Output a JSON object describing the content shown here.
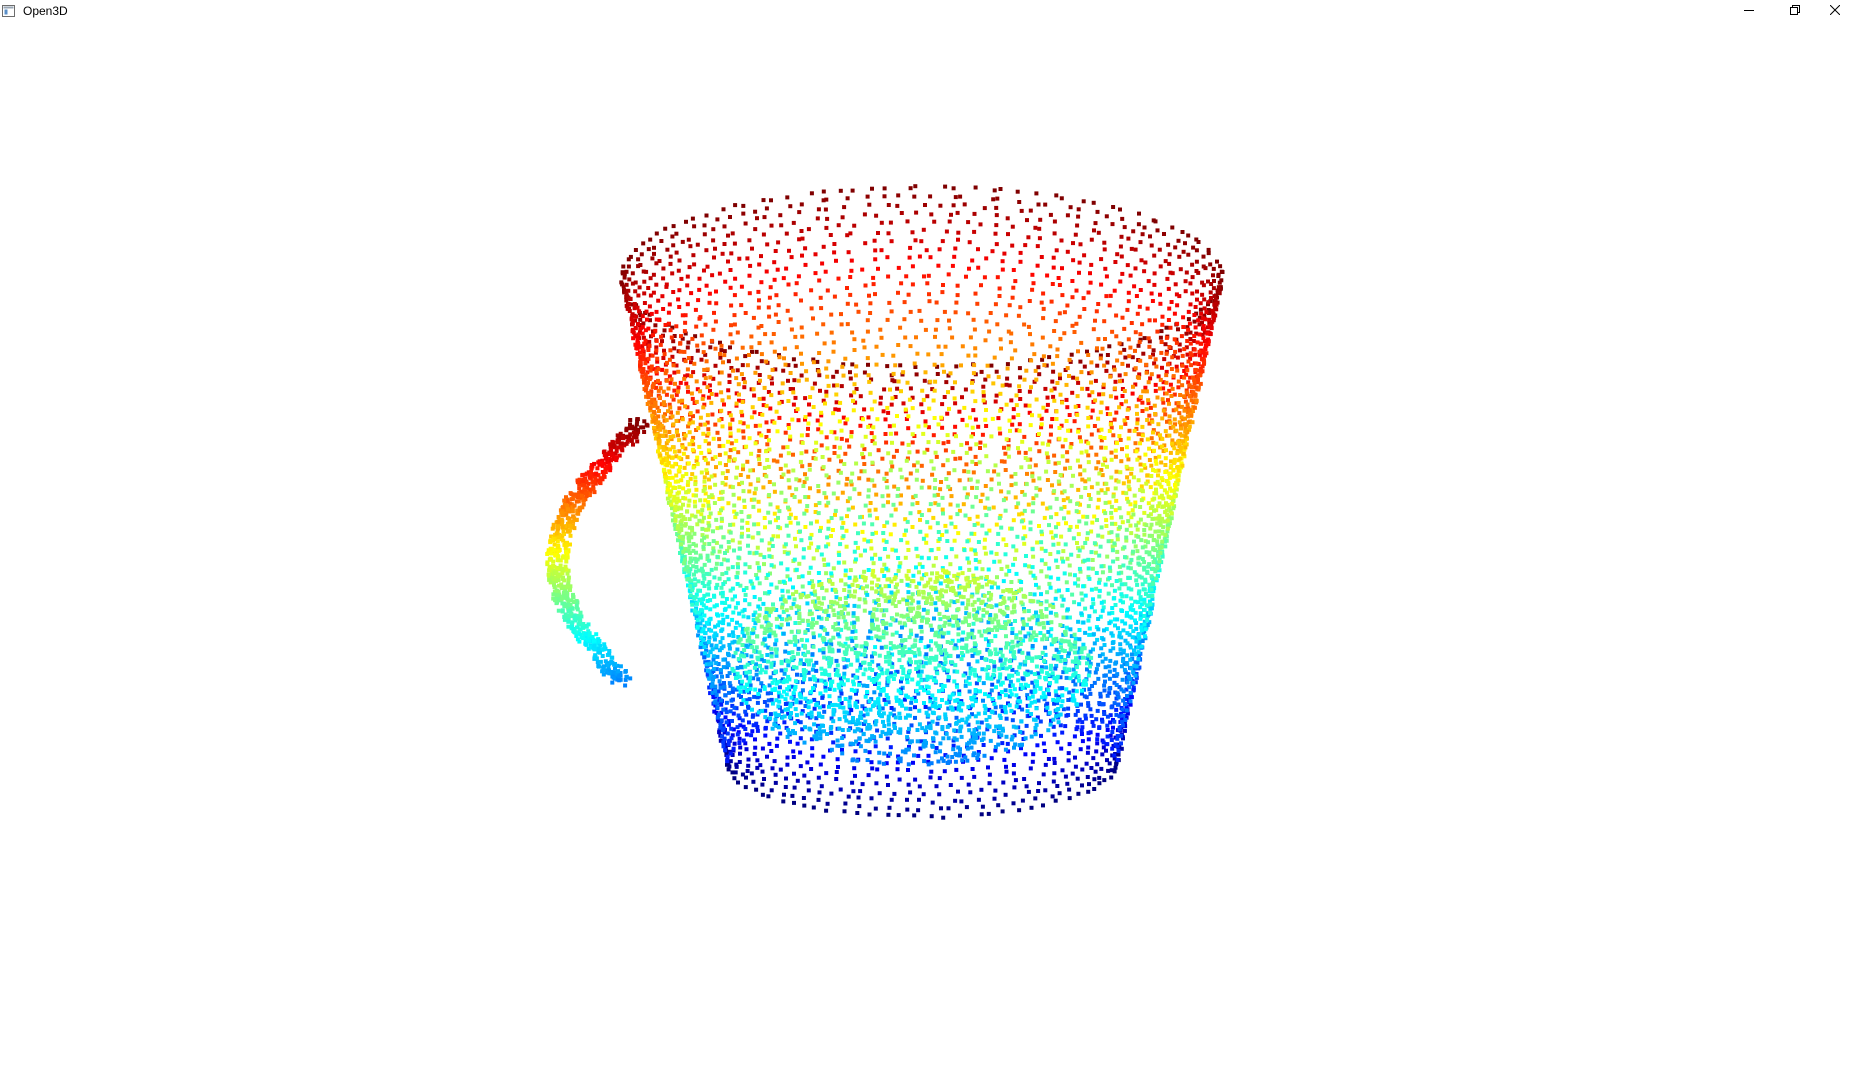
{
  "window": {
    "title": "Open3D",
    "icon": "app-window-icon",
    "controls": {
      "minimize_icon": "minimize-icon",
      "restore_icon": "restore-icon",
      "close_icon": "close-icon"
    }
  },
  "viewport": {
    "background": "#ffffff",
    "content": "point-cloud",
    "colormap": "jet",
    "point_color_low": "#00007f",
    "point_color_high": "#7f0000"
  }
}
